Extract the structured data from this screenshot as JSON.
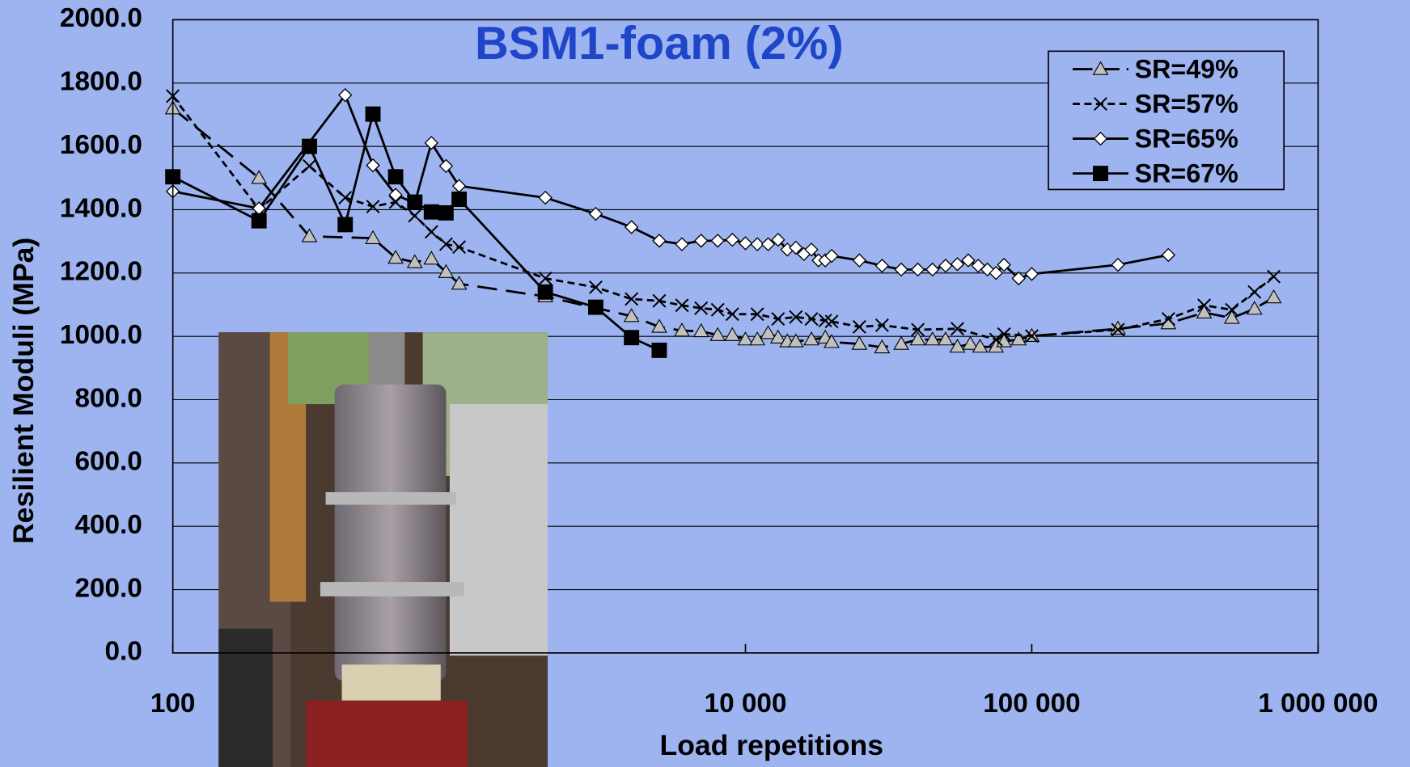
{
  "chart_data": {
    "type": "line",
    "title": "BSM1-foam (2%)",
    "title_color": "#1f45c8",
    "x_label": "Load repetitions",
    "y_label": "Resilient Moduli (MPa)",
    "xscale": "log",
    "xlim": [
      100,
      1000000
    ],
    "xticks": [
      100,
      {
        "value": 10000,
        "label": "10 000"
      },
      {
        "value": 100000,
        "label": "100 000"
      },
      {
        "value": 1000000,
        "label": "1 000 000"
      }
    ],
    "ylim": [
      0,
      2000
    ],
    "yticks": [
      {
        "value": 0,
        "label": "0.0"
      },
      {
        "value": 200,
        "label": "200.0"
      },
      {
        "value": 400,
        "label": "400.0"
      },
      {
        "value": 600,
        "label": "600.0"
      },
      {
        "value": 800,
        "label": "800.0"
      },
      {
        "value": 1000,
        "label": "1000.0"
      },
      {
        "value": 1200,
        "label": "1200.0"
      },
      {
        "value": 1400,
        "label": "1400.0"
      },
      {
        "value": 1600,
        "label": "1600.0"
      },
      {
        "value": 1800,
        "label": "1800.0"
      },
      {
        "value": 2000,
        "label": "2000.0"
      }
    ],
    "grid": true,
    "legend": "upper right",
    "series": [
      {
        "name": "SR=49%",
        "color": "#000000",
        "marker": "triangle",
        "marker_fill": "#c0c0c0",
        "dash": "22,10",
        "x": [
          100,
          200,
          300,
          500,
          600,
          700,
          800,
          900,
          1000,
          2000,
          4000,
          5000,
          6000,
          7000,
          8000,
          9000,
          10000,
          11000,
          12000,
          13000,
          14000,
          15000,
          17000,
          19000,
          20000,
          25000,
          30000,
          35000,
          40000,
          45000,
          50000,
          55000,
          61000,
          66000,
          75000,
          80000,
          90000,
          100000,
          200000,
          300000,
          400000,
          500000,
          600000,
          700000
        ],
        "values": [
          1720,
          1500,
          1316,
          1310,
          1248,
          1234,
          1245,
          1203,
          1166,
          1126,
          1064,
          1030,
          1018,
          1016,
          1004,
          1004,
          990,
          990,
          1010,
          996,
          984,
          984,
          990,
          996,
          982,
          976,
          965,
          976,
          990,
          990,
          990,
          967,
          976,
          967,
          967,
          984,
          990,
          1001,
          1024,
          1041,
          1075,
          1058,
          1087,
          1123
        ]
      },
      {
        "name": "SR=57%",
        "color": "#000000",
        "marker": "x",
        "marker_fill": "none",
        "dash": "8,5",
        "x": [
          100,
          200,
          300,
          400,
          500,
          600,
          700,
          800,
          900,
          1000,
          2000,
          3000,
          4000,
          5000,
          6000,
          7000,
          8000,
          9000,
          11000,
          13000,
          15000,
          17000,
          19000,
          20000,
          25000,
          30000,
          40000,
          55000,
          75000,
          80000,
          100000,
          200000,
          300000,
          400000,
          500000,
          600000,
          700000
        ],
        "values": [
          1759,
          1401,
          1538,
          1438,
          1410,
          1424,
          1381,
          1330,
          1291,
          1282,
          1183,
          1155,
          1118,
          1112,
          1098,
          1089,
          1084,
          1070,
          1070,
          1055,
          1061,
          1055,
          1050,
          1047,
          1030,
          1035,
          1021,
          1024,
          990,
          1007,
          1001,
          1021,
          1055,
          1098,
          1084,
          1140,
          1189
        ]
      },
      {
        "name": "SR=65%",
        "color": "#000000",
        "marker": "diamond",
        "marker_fill": "#ffffff",
        "dash": "none",
        "x": [
          100,
          200,
          400,
          500,
          600,
          700,
          800,
          900,
          1000,
          2000,
          3000,
          4000,
          5000,
          6000,
          7000,
          8000,
          9000,
          10000,
          11000,
          12000,
          13000,
          14000,
          15000,
          16000,
          17000,
          18000,
          19000,
          20000,
          25000,
          30000,
          35000,
          40000,
          45000,
          50000,
          55000,
          60000,
          65000,
          70000,
          75000,
          80000,
          90000,
          100000,
          200000,
          300000
        ],
        "values": [
          1458,
          1404,
          1762,
          1540,
          1447,
          1421,
          1611,
          1538,
          1475,
          1438,
          1387,
          1345,
          1302,
          1291,
          1302,
          1302,
          1305,
          1294,
          1291,
          1291,
          1305,
          1274,
          1280,
          1260,
          1274,
          1240,
          1240,
          1254,
          1240,
          1223,
          1211,
          1211,
          1211,
          1223,
          1228,
          1240,
          1223,
          1211,
          1200,
          1226,
          1183,
          1197,
          1226,
          1257
        ]
      },
      {
        "name": "SR=67%",
        "color": "#000000",
        "marker": "square",
        "marker_fill": "#000000",
        "dash": "none",
        "x": [
          100,
          200,
          300,
          400,
          500,
          600,
          700,
          800,
          900,
          1000,
          2000,
          3000,
          4000,
          5000
        ],
        "values": [
          1504,
          1365,
          1600,
          1353,
          1702,
          1504,
          1424,
          1393,
          1390,
          1433,
          1140,
          1092,
          996,
          956
        ]
      }
    ]
  }
}
